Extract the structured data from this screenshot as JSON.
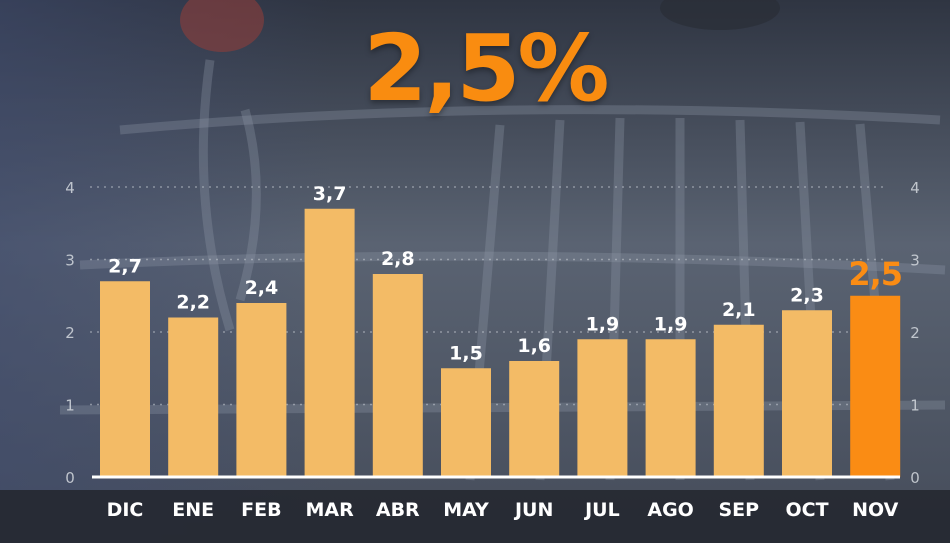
{
  "headline": "2,5%",
  "colors": {
    "bar": "#f3bb66",
    "highlight": "#fa8c14",
    "label": "#ffffff",
    "gridline": "#c3c8cf"
  },
  "chart_data": {
    "type": "bar",
    "categories": [
      "DIC",
      "ENE",
      "FEB",
      "MAR",
      "ABR",
      "MAY",
      "JUN",
      "JUL",
      "AGO",
      "SEP",
      "OCT",
      "NOV"
    ],
    "values": [
      2.7,
      2.2,
      2.4,
      3.7,
      2.8,
      1.5,
      1.6,
      1.9,
      1.9,
      2.1,
      2.3,
      2.5
    ],
    "value_labels": [
      "2,7",
      "2,2",
      "2,4",
      "3,7",
      "2,8",
      "1,5",
      "1,6",
      "1,9",
      "1,9",
      "2,1",
      "2,3",
      "2,5"
    ],
    "highlight_index": 11,
    "ylim": [
      0,
      4
    ],
    "y_ticks": [
      0,
      1,
      2,
      3,
      4
    ],
    "y_tick_labels": [
      "0",
      "1",
      "2",
      "3",
      "4"
    ],
    "axis_sides": [
      "left",
      "right"
    ],
    "grid": true
  }
}
